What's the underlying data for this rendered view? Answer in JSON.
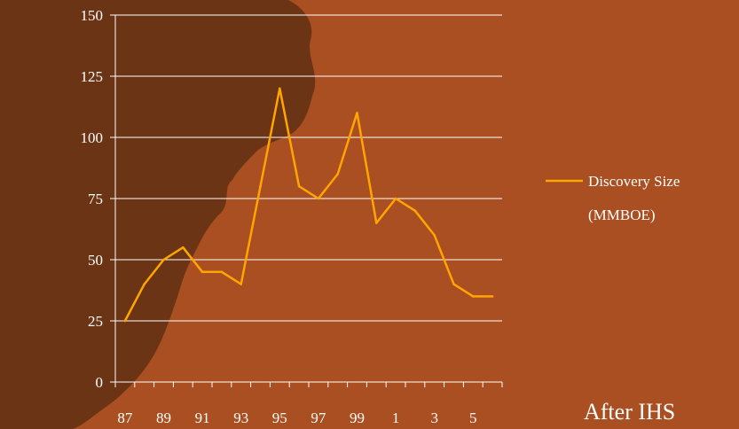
{
  "chart_data": {
    "type": "line",
    "x_tick_labels": [
      "87",
      "89",
      "91",
      "93",
      "95",
      "97",
      "99",
      "1",
      "3",
      "5"
    ],
    "y_tick_labels": [
      "0",
      "25",
      "50",
      "75",
      "100",
      "125",
      "150"
    ],
    "ylim": [
      0,
      150
    ],
    "grid": "horizontal",
    "legend": "right",
    "series": [
      {
        "name": "Discovery Size (MMBOE)",
        "color": "#ffa500",
        "x": [
          1987,
          1988,
          1989,
          1990,
          1991,
          1992,
          1993,
          1994,
          1995,
          1996,
          1997,
          1998,
          1999,
          2000,
          2001,
          2002,
          2003,
          2004,
          2005,
          2006
        ],
        "values": [
          25,
          40,
          50,
          55,
          45,
          45,
          40,
          80,
          120,
          80,
          75,
          85,
          110,
          65,
          75,
          70,
          60,
          40,
          35,
          35
        ]
      }
    ],
    "legend_lines": [
      "Discovery Size",
      "(MMBOE)"
    ]
  },
  "source_note": "After IHS",
  "colors": {
    "background": "#a94f22",
    "shadow": "#6b3414",
    "line": "#ffa500",
    "grid": "#ffffff"
  }
}
